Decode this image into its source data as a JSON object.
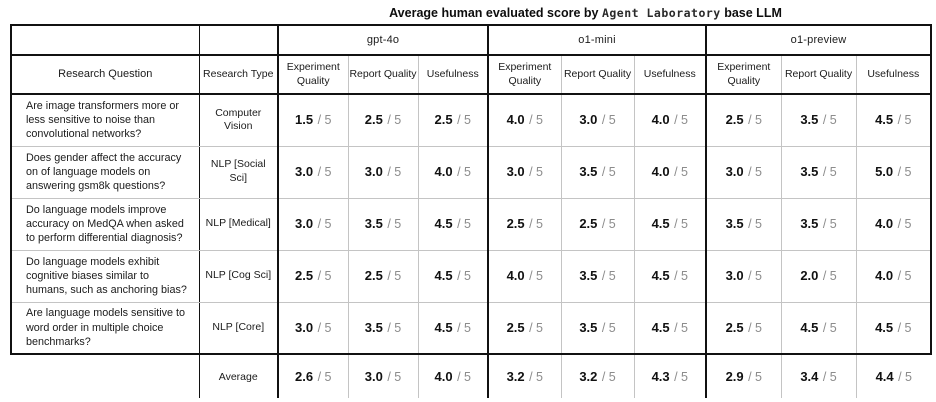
{
  "title": {
    "prefix": "Average human evaluated score by",
    "agent_name": "Agent Laboratory",
    "suffix": "base LLM"
  },
  "table": {
    "corner_headers": {
      "research_question": "Research Question",
      "research_type": "Research Type"
    },
    "model_groups": [
      "gpt-4o",
      "o1-mini",
      "o1-preview"
    ],
    "metric_headers": [
      "Experiment Quality",
      "Report Quality",
      "Usefulness"
    ],
    "score_denominator": "/ 5",
    "rows": [
      {
        "question": "Are image transformers more or less sensitive to noise than convolutional networks?",
        "research_type": "Computer Vision",
        "scores": [
          "1.5",
          "2.5",
          "2.5",
          "4.0",
          "3.0",
          "4.0",
          "2.5",
          "3.5",
          "4.5"
        ]
      },
      {
        "question": "Does gender affect the accuracy on of language models on answering gsm8k questions?",
        "research_type": "NLP [Social Sci]",
        "scores": [
          "3.0",
          "3.0",
          "4.0",
          "3.0",
          "3.5",
          "4.0",
          "3.0",
          "3.5",
          "5.0"
        ]
      },
      {
        "question": "Do language models improve accuracy on MedQA when asked to perform differential diagnosis?",
        "research_type": "NLP [Medical]",
        "scores": [
          "3.0",
          "3.5",
          "4.5",
          "2.5",
          "2.5",
          "4.5",
          "3.5",
          "3.5",
          "4.0"
        ]
      },
      {
        "question": "Do language models exhibit cognitive biases similar to humans, such as anchoring bias?",
        "research_type": "NLP [Cog Sci]",
        "scores": [
          "2.5",
          "2.5",
          "4.5",
          "4.0",
          "3.5",
          "4.5",
          "3.0",
          "2.0",
          "4.0"
        ]
      },
      {
        "question": "Are language models sensitive to word order in multiple choice benchmarks?",
        "research_type": "NLP [Core]",
        "scores": [
          "3.0",
          "3.5",
          "4.5",
          "2.5",
          "3.5",
          "4.5",
          "2.5",
          "4.5",
          "4.5"
        ]
      }
    ],
    "average_row": {
      "label": "Average",
      "scores": [
        "2.6",
        "3.0",
        "4.0",
        "3.2",
        "3.2",
        "4.3",
        "2.9",
        "3.4",
        "4.4"
      ]
    }
  }
}
